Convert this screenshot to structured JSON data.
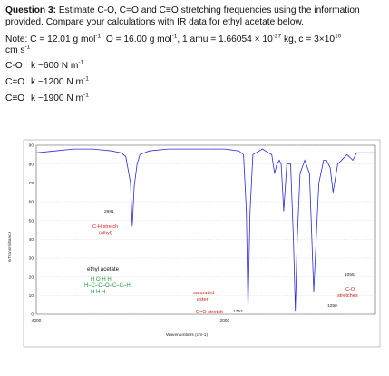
{
  "question": {
    "label": "Question 3:",
    "text": "Estimate C-O, C=O and C≡O stretching frequencies using the information provided. Compare your calculations with IR data for ethyl acetate below."
  },
  "note": {
    "line1": "Note: C = 12.01 g mol",
    "sup1": "-1",
    "part2": ", O = 16.00 g mol",
    "sup2": "-1",
    "part3": ", 1 amu = 1.66054 × 10",
    "sup3": "-27",
    "part4": " kg, c = 3×10",
    "sup4": "10",
    "line2": "cm s",
    "sup5": "-1"
  },
  "constants": [
    {
      "bond": "C-O",
      "value": "k ~600 N m",
      "sup": "-1"
    },
    {
      "bond": "C=O",
      "value": "k ~1200 N m",
      "sup": "-1"
    },
    {
      "bond": "C≡O",
      "value": "k ~1900 N m",
      "sup": "-1"
    }
  ],
  "chart_data": {
    "type": "line",
    "xlabel": "Wavenumbers (cm-1)",
    "ylabel": "%Transmittance",
    "x_range": [
      4000,
      400
    ],
    "xticks": [
      4000,
      2000
    ],
    "ylim": [
      0,
      90
    ],
    "yticks": [
      0,
      10,
      20,
      30,
      40,
      50,
      60,
      70,
      80,
      90
    ],
    "series_color": "#2a2ad8",
    "x": [
      4000,
      3800,
      3600,
      3400,
      3200,
      3100,
      3050,
      3000,
      2981,
      2960,
      2930,
      2900,
      2800,
      2600,
      2400,
      2200,
      2000,
      1850,
      1800,
      1770,
      1752,
      1730,
      1700,
      1600,
      1500,
      1470,
      1445,
      1420,
      1400,
      1373,
      1340,
      1300,
      1270,
      1250,
      1230,
      1200,
      1150,
      1100,
      1055,
      1010,
      1000,
      950,
      920,
      880,
      850,
      800,
      700,
      640,
      600,
      500,
      400
    ],
    "y": [
      86,
      87,
      88,
      88,
      87,
      86,
      84,
      70,
      47,
      68,
      80,
      85,
      87,
      88,
      88,
      88,
      88,
      87,
      85,
      55,
      2,
      55,
      85,
      88,
      85,
      75,
      80,
      82,
      80,
      55,
      80,
      80,
      40,
      2,
      40,
      75,
      82,
      75,
      12,
      60,
      70,
      82,
      82,
      78,
      65,
      80,
      85,
      82,
      86,
      86,
      86
    ],
    "annotations": [
      {
        "label": "2981",
        "x": 2981
      },
      {
        "label": "C-H stretch",
        "sub": "(alkyl)",
        "x": 2981,
        "color": "#d0201a"
      },
      {
        "label": "saturated",
        "sub": "ester",
        "x": 1752,
        "color": "#d0201a"
      },
      {
        "label": "C=O stretch",
        "x": 1752,
        "color": "#d0201a"
      },
      {
        "label": "1752",
        "x": 1752
      },
      {
        "label": "1055",
        "x": 1055
      },
      {
        "label": "C-O",
        "sub": "stretches",
        "x": 1055,
        "color": "#d0201a"
      },
      {
        "label": "1250",
        "x": 1250
      }
    ],
    "compound": "ethyl acetate",
    "molecule_lines": [
      "H  O     H  H",
      "H–C–C–O–C–C–H",
      "H              H  H"
    ]
  }
}
